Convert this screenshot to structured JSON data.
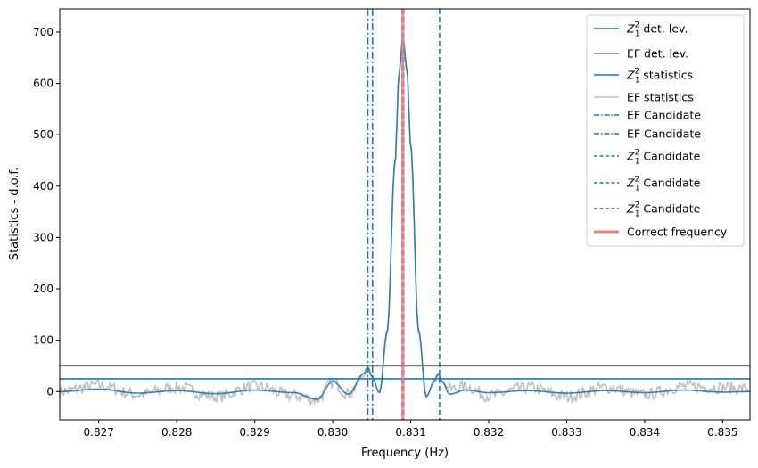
{
  "chart_data": {
    "type": "line",
    "title": "",
    "xlabel": "Frequency (Hz)",
    "ylabel": "Statistics - d.o.f.",
    "xlim": [
      0.8265,
      0.83535
    ],
    "ylim": [
      -55,
      745
    ],
    "xticks": [
      0.827,
      0.828,
      0.829,
      0.83,
      0.831,
      0.832,
      0.833,
      0.834,
      0.835
    ],
    "xtick_labels": [
      "0.827",
      "0.828",
      "0.829",
      "0.830",
      "0.831",
      "0.832",
      "0.833",
      "0.834",
      "0.835"
    ],
    "yticks": [
      0,
      100,
      200,
      300,
      400,
      500,
      600,
      700
    ],
    "ytick_labels": [
      "0",
      "100",
      "200",
      "300",
      "400",
      "500",
      "600",
      "700"
    ],
    "grid": false,
    "legend_position": "upper-right",
    "horizontal_lines": [
      {
        "name": "Z_1^2 det. lev.",
        "y": 25,
        "color": "#1f77b4"
      },
      {
        "name": "EF det. lev.",
        "y": 50,
        "color": "#808080"
      }
    ],
    "series": [
      {
        "name": "Z_1^2 statistics",
        "color": "#1f77b4",
        "x": [
          0.8265,
          0.827,
          0.8275,
          0.828,
          0.8285,
          0.829,
          0.8295,
          0.8298,
          0.83,
          0.8302,
          0.8304,
          0.83045,
          0.8305,
          0.8306,
          0.8307,
          0.8308,
          0.83085,
          0.8309,
          0.83095,
          0.831,
          0.8311,
          0.8312,
          0.8313,
          0.83135,
          0.8314,
          0.8315,
          0.8317,
          0.832,
          0.8325,
          0.833,
          0.8335,
          0.834,
          0.8345,
          0.835,
          0.83535
        ],
        "y": [
          0,
          5,
          -3,
          2,
          -4,
          3,
          -2,
          -15,
          20,
          -5,
          35,
          48,
          30,
          -2,
          120,
          450,
          620,
          690,
          630,
          480,
          120,
          -10,
          20,
          35,
          20,
          -5,
          3,
          -2,
          2,
          -3,
          2,
          -2,
          3,
          -1,
          0
        ]
      },
      {
        "name": "EF statistics",
        "color": "#bfbfbf",
        "x": [
          0.8265,
          0.827,
          0.8275,
          0.828,
          0.8285,
          0.829,
          0.8295,
          0.8298,
          0.83,
          0.8302,
          0.8304,
          0.83045,
          0.8305,
          0.8306,
          0.8307,
          0.8308,
          0.83085,
          0.8309,
          0.83095,
          0.831,
          0.8311,
          0.8312,
          0.8313,
          0.83135,
          0.8314,
          0.8315,
          0.8317,
          0.832,
          0.8325,
          0.833,
          0.8335,
          0.834,
          0.8345,
          0.835,
          0.83535
        ],
        "y": [
          0,
          12,
          -6,
          8,
          -10,
          10,
          -8,
          -15,
          18,
          -4,
          30,
          45,
          28,
          0,
          115,
          445,
          615,
          685,
          625,
          475,
          115,
          -8,
          18,
          32,
          18,
          5,
          10,
          -8,
          8,
          -10,
          8,
          -6,
          10,
          8,
          5
        ],
        "noise_amplitude": 12
      }
    ],
    "vertical_lines": [
      {
        "name": "EF Candidate",
        "x": 0.83045,
        "color": "#1f77b4",
        "style": "dashdot"
      },
      {
        "name": "EF Candidate",
        "x": 0.83051,
        "color": "#1f77b4",
        "style": "dashdot"
      },
      {
        "name": "Z_1^2 Candidate",
        "x": 0.83089,
        "color": "#1f77b4",
        "style": "dashed"
      },
      {
        "name": "Z_1^2 Candidate",
        "x": 0.83091,
        "color": "#1f77b4",
        "style": "dashed"
      },
      {
        "name": "Z_1^2 Candidate",
        "x": 0.83137,
        "color": "#1f77b4",
        "style": "dashed"
      },
      {
        "name": "Correct frequency",
        "x": 0.8309,
        "color": "#f08080",
        "style": "solid",
        "width": 3
      }
    ],
    "legend": [
      {
        "label_main": "Z",
        "label_sub": "1",
        "label_sup": "2",
        "label_rest": " det. lev.",
        "color": "#1f77b4",
        "style": "solid",
        "width": 1.6
      },
      {
        "label_main": "EF det. lev.",
        "label_sub": "",
        "label_sup": "",
        "label_rest": "",
        "color": "#808080",
        "style": "solid",
        "width": 1.6
      },
      {
        "label_main": "Z",
        "label_sub": "1",
        "label_sup": "2",
        "label_rest": " statistics",
        "color": "#1f77b4",
        "style": "solid",
        "width": 1.6
      },
      {
        "label_main": "EF statistics",
        "label_sub": "",
        "label_sup": "",
        "label_rest": "",
        "color": "#bfbfbf",
        "style": "solid",
        "width": 1.6
      },
      {
        "label_main": "EF Candidate",
        "label_sub": "",
        "label_sup": "",
        "label_rest": "",
        "color": "#1f77b4",
        "style": "dashdot",
        "width": 1.6
      },
      {
        "label_main": "EF Candidate",
        "label_sub": "",
        "label_sup": "",
        "label_rest": "",
        "color": "#1f77b4",
        "style": "dashdot",
        "width": 1.6
      },
      {
        "label_main": "Z",
        "label_sub": "1",
        "label_sup": "2",
        "label_rest": " Candidate",
        "color": "#1f77b4",
        "style": "dashed",
        "width": 1.6
      },
      {
        "label_main": "Z",
        "label_sub": "1",
        "label_sup": "2",
        "label_rest": " Candidate",
        "color": "#1f77b4",
        "style": "dashed",
        "width": 1.6
      },
      {
        "label_main": "Z",
        "label_sub": "1",
        "label_sup": "2",
        "label_rest": " Candidate",
        "color": "#1f77b4",
        "style": "dashed",
        "width": 1.6
      },
      {
        "label_main": "Correct frequency",
        "label_sub": "",
        "label_sup": "",
        "label_rest": "",
        "color": "#f08080",
        "style": "solid",
        "width": 3
      }
    ]
  }
}
